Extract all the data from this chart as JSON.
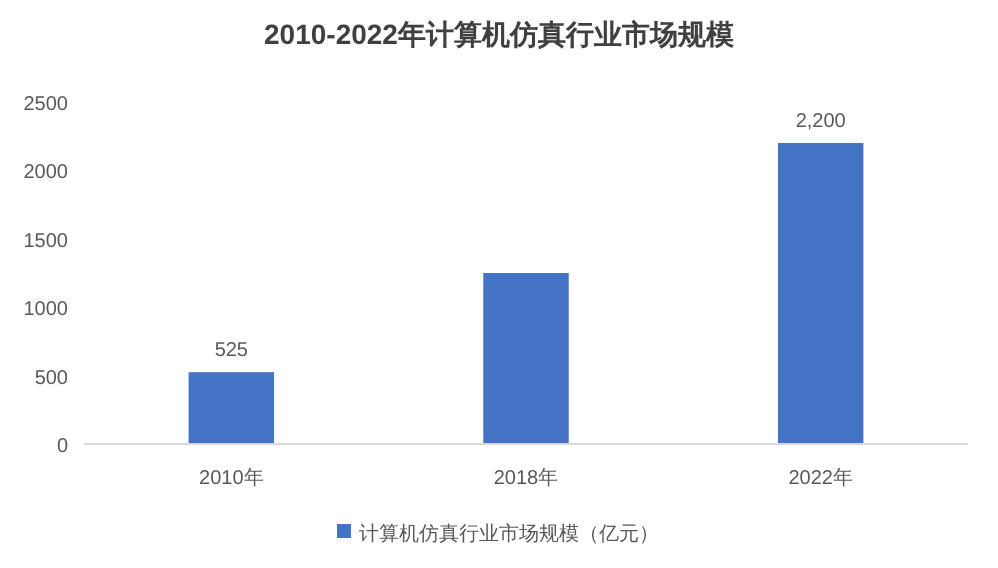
{
  "chart_data": {
    "type": "bar",
    "title": "2010-2022年计算机仿真行业市场规模",
    "categories": [
      "2010年",
      "2018年",
      "2022年"
    ],
    "series": [
      {
        "name": "计算机仿真行业市场规模（亿元）",
        "color": "#4472c4",
        "values": [
          525,
          1250,
          2200
        ]
      }
    ],
    "value_labels": [
      "525",
      null,
      "2,200"
    ],
    "ylim": [
      0,
      2500
    ],
    "yticks": [
      0,
      500,
      1000,
      1500,
      2000,
      2500
    ],
    "legend": "bottom"
  }
}
